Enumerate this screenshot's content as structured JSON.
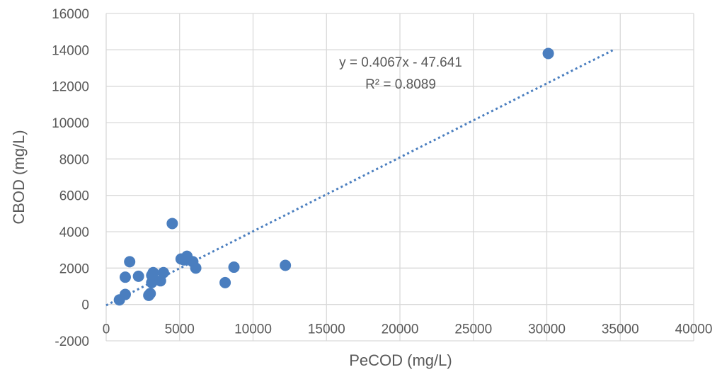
{
  "chart_data": {
    "type": "scatter",
    "xlabel": "PeCOD (mg/L)",
    "ylabel": "CBOD (mg/L)",
    "xlim": [
      0,
      40000
    ],
    "ylim": [
      -2000,
      16000
    ],
    "x_ticks": [
      "0",
      "5000",
      "10000",
      "15000",
      "20000",
      "25000",
      "30000",
      "35000",
      "40000"
    ],
    "y_ticks": [
      "-2000",
      "0",
      "2000",
      "4000",
      "6000",
      "8000",
      "10000",
      "12000",
      "14000",
      "16000"
    ],
    "grid": true,
    "point_color": "#4a7ebf",
    "series": [
      {
        "points": [
          {
            "x": 900,
            "y": 250
          },
          {
            "x": 1300,
            "y": 550
          },
          {
            "x": 1300,
            "y": 1500
          },
          {
            "x": 1600,
            "y": 2350
          },
          {
            "x": 2200,
            "y": 1550
          },
          {
            "x": 2900,
            "y": 500
          },
          {
            "x": 3000,
            "y": 600
          },
          {
            "x": 3100,
            "y": 1200
          },
          {
            "x": 3100,
            "y": 1600
          },
          {
            "x": 3200,
            "y": 1750
          },
          {
            "x": 3700,
            "y": 1300
          },
          {
            "x": 3900,
            "y": 1750
          },
          {
            "x": 4500,
            "y": 4450
          },
          {
            "x": 5100,
            "y": 2500
          },
          {
            "x": 5300,
            "y": 2450
          },
          {
            "x": 5500,
            "y": 2650
          },
          {
            "x": 5900,
            "y": 2350
          },
          {
            "x": 6100,
            "y": 2000
          },
          {
            "x": 8100,
            "y": 1200
          },
          {
            "x": 8700,
            "y": 2050
          },
          {
            "x": 12200,
            "y": 2150
          },
          {
            "x": 30100,
            "y": 13800
          }
        ]
      }
    ],
    "trendline": {
      "type": "linear",
      "slope": 0.4067,
      "intercept": -47.641,
      "x_range": [
        0,
        34500
      ],
      "color": "#4a7ebf",
      "style": "dotted",
      "equation": "y = 0.4067x - 47.641",
      "r_squared": "R² = 0.8089"
    }
  }
}
